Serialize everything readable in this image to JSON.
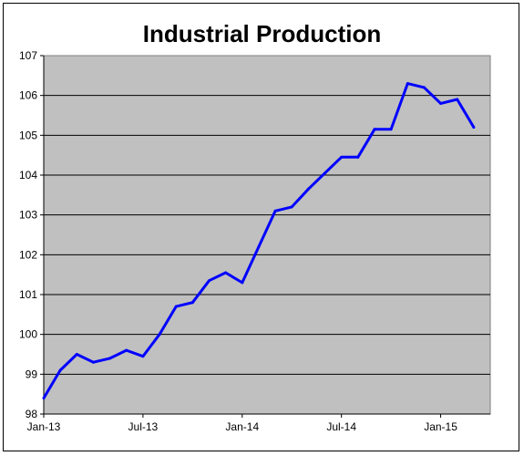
{
  "chart_data": {
    "type": "line",
    "title": "Industrial Production",
    "xlabel": "",
    "ylabel": "",
    "ylim": [
      98,
      107
    ],
    "y_ticks": [
      "98",
      "99",
      "100",
      "101",
      "102",
      "103",
      "104",
      "105",
      "106",
      "107"
    ],
    "x_ticks": [
      {
        "label": "Jan-13",
        "date": "2013-01"
      },
      {
        "label": "Jul-13",
        "date": "2013-07"
      },
      {
        "label": "Jan-14",
        "date": "2014-01"
      },
      {
        "label": "Jul-14",
        "date": "2014-07"
      },
      {
        "label": "Jan-15",
        "date": "2015-01"
      }
    ],
    "grid": true,
    "legend": "none",
    "colors": {
      "plot_background": "#c0c0c0",
      "line": "#0000ff",
      "gridline": "#000000"
    },
    "series": [
      {
        "x": [
          "2013-01",
          "2013-02",
          "2013-03",
          "2013-04",
          "2013-05",
          "2013-06",
          "2013-07",
          "2013-08",
          "2013-09",
          "2013-10",
          "2013-11",
          "2013-12",
          "2014-01",
          "2014-02",
          "2014-03",
          "2014-04",
          "2014-05",
          "2014-06",
          "2014-07",
          "2014-08",
          "2014-09",
          "2014-10",
          "2014-11",
          "2014-12",
          "2015-01",
          "2015-02",
          "2015-03"
        ],
        "values": [
          98.4,
          99.1,
          99.5,
          99.3,
          99.4,
          99.6,
          99.45,
          100.0,
          100.7,
          100.8,
          101.35,
          101.55,
          101.3,
          102.2,
          103.1,
          103.2,
          103.65,
          104.05,
          104.45,
          104.45,
          105.15,
          105.15,
          106.3,
          106.2,
          105.8,
          105.9,
          105.2
        ]
      }
    ]
  }
}
